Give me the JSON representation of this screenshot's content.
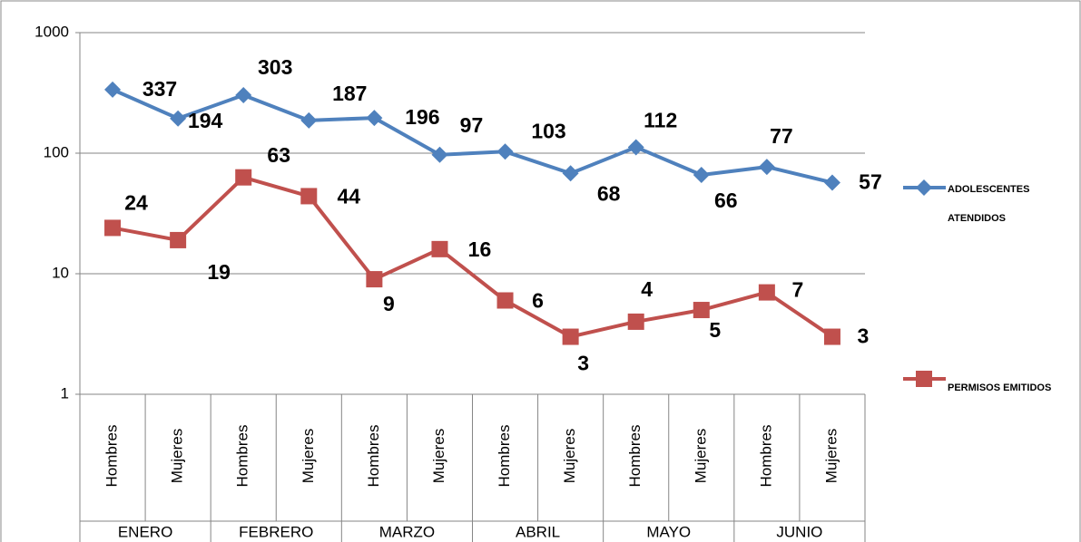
{
  "chart_data": {
    "type": "line",
    "categories": [
      "Hombres",
      "Mujeres",
      "Hombres",
      "Mujeres",
      "Hombres",
      "Mujeres",
      "Hombres",
      "Mujeres",
      "Hombres",
      "Mujeres",
      "Hombres",
      "Mujeres"
    ],
    "groups": [
      "ENERO",
      "FEBRERO",
      "MARZO",
      "ABRIL",
      "MAYO",
      "JUNIO"
    ],
    "series": [
      {
        "name": "ADOLESCENTES ATENDIDOS",
        "color": "#4f81bd",
        "marker": "diamond",
        "values": [
          337,
          194,
          303,
          187,
          196,
          97,
          103,
          68,
          112,
          66,
          77,
          57
        ]
      },
      {
        "name": "PERMISOS EMITIDOS",
        "color": "#c0504d",
        "marker": "square",
        "values": [
          24,
          19,
          63,
          44,
          9,
          16,
          6,
          3,
          4,
          5,
          7,
          3
        ]
      }
    ],
    "ylim": [
      1,
      1000
    ],
    "yticks": [
      1,
      10,
      100,
      1000
    ],
    "log_scale": true,
    "grid": true,
    "legend": "right"
  }
}
